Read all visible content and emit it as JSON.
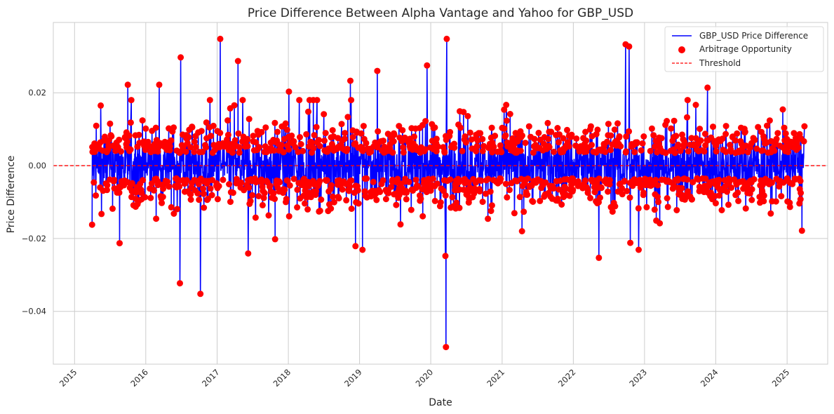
{
  "chart_data": {
    "type": "line",
    "title": "Price Difference Between Alpha Vantage and Yahoo for GBP_USD",
    "xlabel": "Date",
    "ylabel": "Price Difference",
    "x_ticks": [
      "2015",
      "2016",
      "2017",
      "2018",
      "2019",
      "2020",
      "2021",
      "2022",
      "2023",
      "2024",
      "2025"
    ],
    "y_ticks": [
      -0.04,
      -0.02,
      0.0,
      0.02
    ],
    "y_tick_labels": [
      "−0.04",
      "−0.02",
      "0.00",
      "0.02"
    ],
    "xlim": [
      "2014-09-14",
      "2025-07-28"
    ],
    "ylim": [
      -0.0545,
      0.0393
    ],
    "grid": true,
    "legend_position": "top-right",
    "series": [
      {
        "name": "GBP_USD Price Difference",
        "kind": "line",
        "color": "#0000ff",
        "x_range": [
          "2015-04-01",
          "2025-03-31"
        ],
        "noise_amplitude": 0.012,
        "notable_points": [
          {
            "x": "2015-04-01",
            "y": -0.0162
          },
          {
            "x": "2015-05-15",
            "y": 0.0165
          },
          {
            "x": "2015-08-20",
            "y": -0.0213
          },
          {
            "x": "2015-10-01",
            "y": 0.0222
          },
          {
            "x": "2016-03-10",
            "y": 0.0222
          },
          {
            "x": "2016-06-24",
            "y": -0.0323
          },
          {
            "x": "2016-06-28",
            "y": 0.0297
          },
          {
            "x": "2016-10-07",
            "y": -0.0352
          },
          {
            "x": "2017-01-17",
            "y": 0.0348
          },
          {
            "x": "2017-04-18",
            "y": 0.0287
          },
          {
            "x": "2017-06-09",
            "y": -0.0241
          },
          {
            "x": "2017-10-25",
            "y": -0.0202
          },
          {
            "x": "2018-01-04",
            "y": 0.0203
          },
          {
            "x": "2018-11-15",
            "y": 0.0233
          },
          {
            "x": "2018-12-11",
            "y": -0.0221
          },
          {
            "x": "2019-01-16",
            "y": -0.0231
          },
          {
            "x": "2019-04-02",
            "y": 0.026
          },
          {
            "x": "2019-12-13",
            "y": 0.0275
          },
          {
            "x": "2020-03-19",
            "y": -0.0498
          },
          {
            "x": "2020-03-23",
            "y": 0.0348
          },
          {
            "x": "2020-03-16",
            "y": -0.0248
          },
          {
            "x": "2022-05-12",
            "y": -0.0253
          },
          {
            "x": "2022-09-26",
            "y": 0.0333
          },
          {
            "x": "2022-10-14",
            "y": 0.0327
          },
          {
            "x": "2022-10-20",
            "y": -0.0212
          },
          {
            "x": "2022-12-02",
            "y": -0.0231
          },
          {
            "x": "2023-11-20",
            "y": 0.0214
          },
          {
            "x": "2025-03-31",
            "y": 0.0108
          }
        ]
      },
      {
        "name": "Arbitrage Opportunity",
        "kind": "scatter",
        "color": "#ff0000",
        "rule": "points where |difference| > threshold"
      },
      {
        "name": "Threshold",
        "kind": "hline",
        "color": "#ff0000",
        "y": 0.0
      }
    ]
  }
}
